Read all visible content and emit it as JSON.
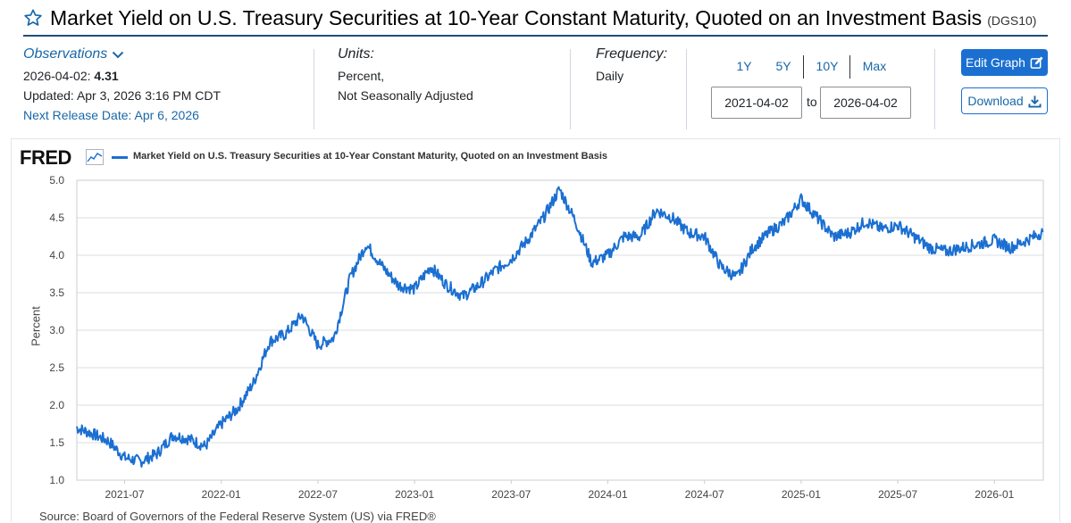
{
  "header": {
    "title": "Market Yield on U.S. Treasury Securities at 10-Year Constant Maturity, Quoted on an Investment Basis",
    "series_id": "(DGS10)"
  },
  "observations": {
    "link_label": "Observations",
    "date_label": "2026-04-02:",
    "value": "4.31",
    "updated": "Updated: Apr 3, 2026 3:16 PM CDT",
    "next_release": "Next Release Date: Apr 6, 2026"
  },
  "units": {
    "label": "Units:",
    "line1": "Percent,",
    "line2": "Not Seasonally Adjusted"
  },
  "frequency": {
    "label": "Frequency:",
    "value": "Daily"
  },
  "range": {
    "buttons": [
      "1Y",
      "5Y",
      "10Y",
      "Max"
    ],
    "start": "2021-04-02",
    "to_label": "to",
    "end": "2026-04-02"
  },
  "actions": {
    "edit_graph": "Edit Graph",
    "download": "Download"
  },
  "chart_header": {
    "logo": "FRED",
    "legend": "Market Yield on U.S. Treasury Securities at 10-Year Constant Maturity, Quoted on an Investment Basis"
  },
  "source": "Source: Board of Governors of the Federal Reserve System (US) via FRED®",
  "colors": {
    "accent": "#1b6fd1",
    "link": "#1967a8",
    "title_rule": "#1f4e79"
  },
  "chart_data": {
    "type": "line",
    "title": "Market Yield on U.S. Treasury Securities at 10-Year Constant Maturity, Quoted on an Investment Basis",
    "xlabel": "",
    "ylabel": "Percent",
    "ylim": [
      1.0,
      5.0
    ],
    "yticks": [
      "1.0",
      "1.5",
      "2.0",
      "2.5",
      "3.0",
      "3.5",
      "4.0",
      "4.5",
      "5.0"
    ],
    "xticks": [
      "2021-07",
      "2022-01",
      "2022-07",
      "2023-01",
      "2023-07",
      "2024-01",
      "2024-07",
      "2025-01",
      "2025-07",
      "2026-01"
    ],
    "x_range": [
      "2021-04-02",
      "2026-04-02"
    ],
    "grid": true,
    "series": [
      {
        "name": "DGS10",
        "x": [
          "2021-04",
          "2021-05",
          "2021-06",
          "2021-07",
          "2021-08",
          "2021-09",
          "2021-10",
          "2021-11",
          "2021-12",
          "2022-01",
          "2022-02",
          "2022-03",
          "2022-04",
          "2022-05",
          "2022-06",
          "2022-07",
          "2022-08",
          "2022-09",
          "2022-10",
          "2022-11",
          "2022-12",
          "2023-01",
          "2023-02",
          "2023-03",
          "2023-04",
          "2023-05",
          "2023-06",
          "2023-07",
          "2023-08",
          "2023-09",
          "2023-10",
          "2023-11",
          "2023-12",
          "2024-01",
          "2024-02",
          "2024-03",
          "2024-04",
          "2024-05",
          "2024-06",
          "2024-07",
          "2024-08",
          "2024-09",
          "2024-10",
          "2024-11",
          "2024-12",
          "2025-01",
          "2025-02",
          "2025-03",
          "2025-04",
          "2025-05",
          "2025-06",
          "2025-07",
          "2025-08",
          "2025-09",
          "2025-10",
          "2025-11",
          "2025-12",
          "2026-01",
          "2026-02",
          "2026-03",
          "2026-04"
        ],
        "values": [
          1.7,
          1.62,
          1.52,
          1.3,
          1.25,
          1.35,
          1.6,
          1.55,
          1.45,
          1.75,
          1.95,
          2.3,
          2.85,
          2.95,
          3.2,
          2.8,
          2.9,
          3.7,
          4.15,
          3.85,
          3.6,
          3.55,
          3.85,
          3.6,
          3.45,
          3.6,
          3.8,
          3.95,
          4.2,
          4.5,
          4.88,
          4.45,
          3.9,
          4.0,
          4.25,
          4.25,
          4.6,
          4.5,
          4.3,
          4.25,
          3.85,
          3.7,
          4.1,
          4.3,
          4.45,
          4.75,
          4.5,
          4.25,
          4.3,
          4.45,
          4.35,
          4.4,
          4.25,
          4.1,
          4.05,
          4.1,
          4.15,
          4.2,
          4.1,
          4.2,
          4.31
        ]
      }
    ]
  }
}
